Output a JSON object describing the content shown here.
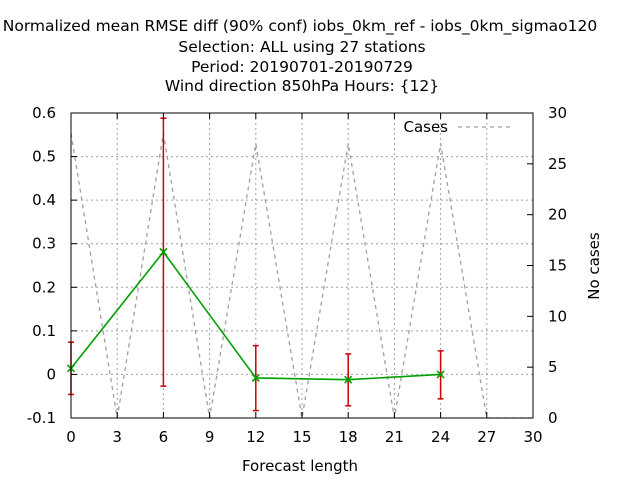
{
  "chart_data": {
    "type": "line",
    "title_lines": [
      "Normalized mean RMSE diff (90% conf) iobs_0km_ref - iobs_0km_sigmao120",
      "Selection: ALL using    27 stations",
      "Period: 20190701-20190729",
      "Wind direction 850hPa   Hours: {12}"
    ],
    "xlabel": "Forecast length",
    "ylabel": "",
    "y2label": "No cases",
    "xlim": [
      0,
      30
    ],
    "ylim": [
      -0.1,
      0.6
    ],
    "y2lim": [
      0,
      30
    ],
    "xticks": [
      "0",
      "3",
      "6",
      "9",
      "12",
      "15",
      "18",
      "21",
      "24",
      "27",
      "30"
    ],
    "yticks": [
      "-0.1",
      "0",
      "0.1",
      "0.2",
      "0.3",
      "0.4",
      "0.5",
      "0.6"
    ],
    "y2ticks": [
      "0",
      "5",
      "10",
      "15",
      "20",
      "25",
      "30"
    ],
    "grid": true,
    "legend_position": "top-right",
    "series": [
      {
        "name": "",
        "role": "rmse_diff",
        "color": "#00a000",
        "x": [
          0,
          6,
          12,
          18,
          24
        ],
        "y": [
          0.014,
          0.281,
          -0.008,
          -0.012,
          0.0
        ],
        "err_low": [
          -0.046,
          -0.027,
          -0.083,
          -0.072,
          -0.056
        ],
        "err_high": [
          0.074,
          0.588,
          0.066,
          0.047,
          0.054
        ],
        "err_color": "#cc0000"
      },
      {
        "name": "Cases",
        "role": "cases",
        "axis": "y2",
        "color": "#a0a0a0",
        "x": [
          0,
          3,
          6,
          9,
          12,
          15,
          18,
          21,
          24,
          27,
          30
        ],
        "y": [
          28,
          0,
          28,
          0,
          27,
          0,
          27,
          0,
          27,
          0,
          0
        ]
      }
    ]
  }
}
